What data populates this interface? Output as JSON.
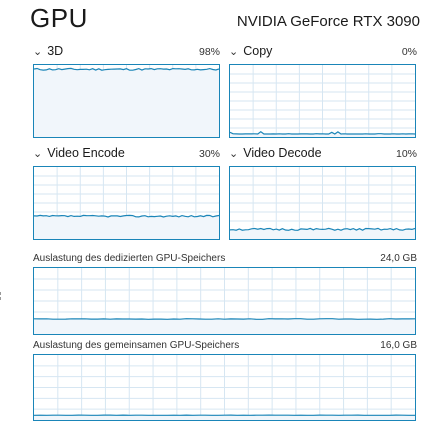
{
  "header": {
    "title": "GPU",
    "gpu_model": "NVIDIA GeForce RTX 3090"
  },
  "engines": {
    "threed": {
      "label": "3D",
      "percent": "98%",
      "level": 0.98
    },
    "copy": {
      "label": "Copy",
      "percent": "0%",
      "level": 0.0
    },
    "video_encode": {
      "label": "Video Encode",
      "percent": "30%",
      "level": 0.3
    },
    "video_decode": {
      "label": "Video Decode",
      "percent": "10%",
      "level": 0.1
    }
  },
  "memory": {
    "dedicated": {
      "label": "Auslastung des dedizierten GPU-Speichers",
      "total": "24,0 GB",
      "level": 0.2
    },
    "shared": {
      "label": "Auslastung des gemeinsamen GPU-Speichers",
      "total": "16,0 GB",
      "level": 0.03
    }
  },
  "icons": {
    "expand": "chevron-down-icon"
  },
  "colors": {
    "accent": "#1a85b8",
    "fill": "#f1f6fb",
    "grid": "#d6e6f2"
  }
}
